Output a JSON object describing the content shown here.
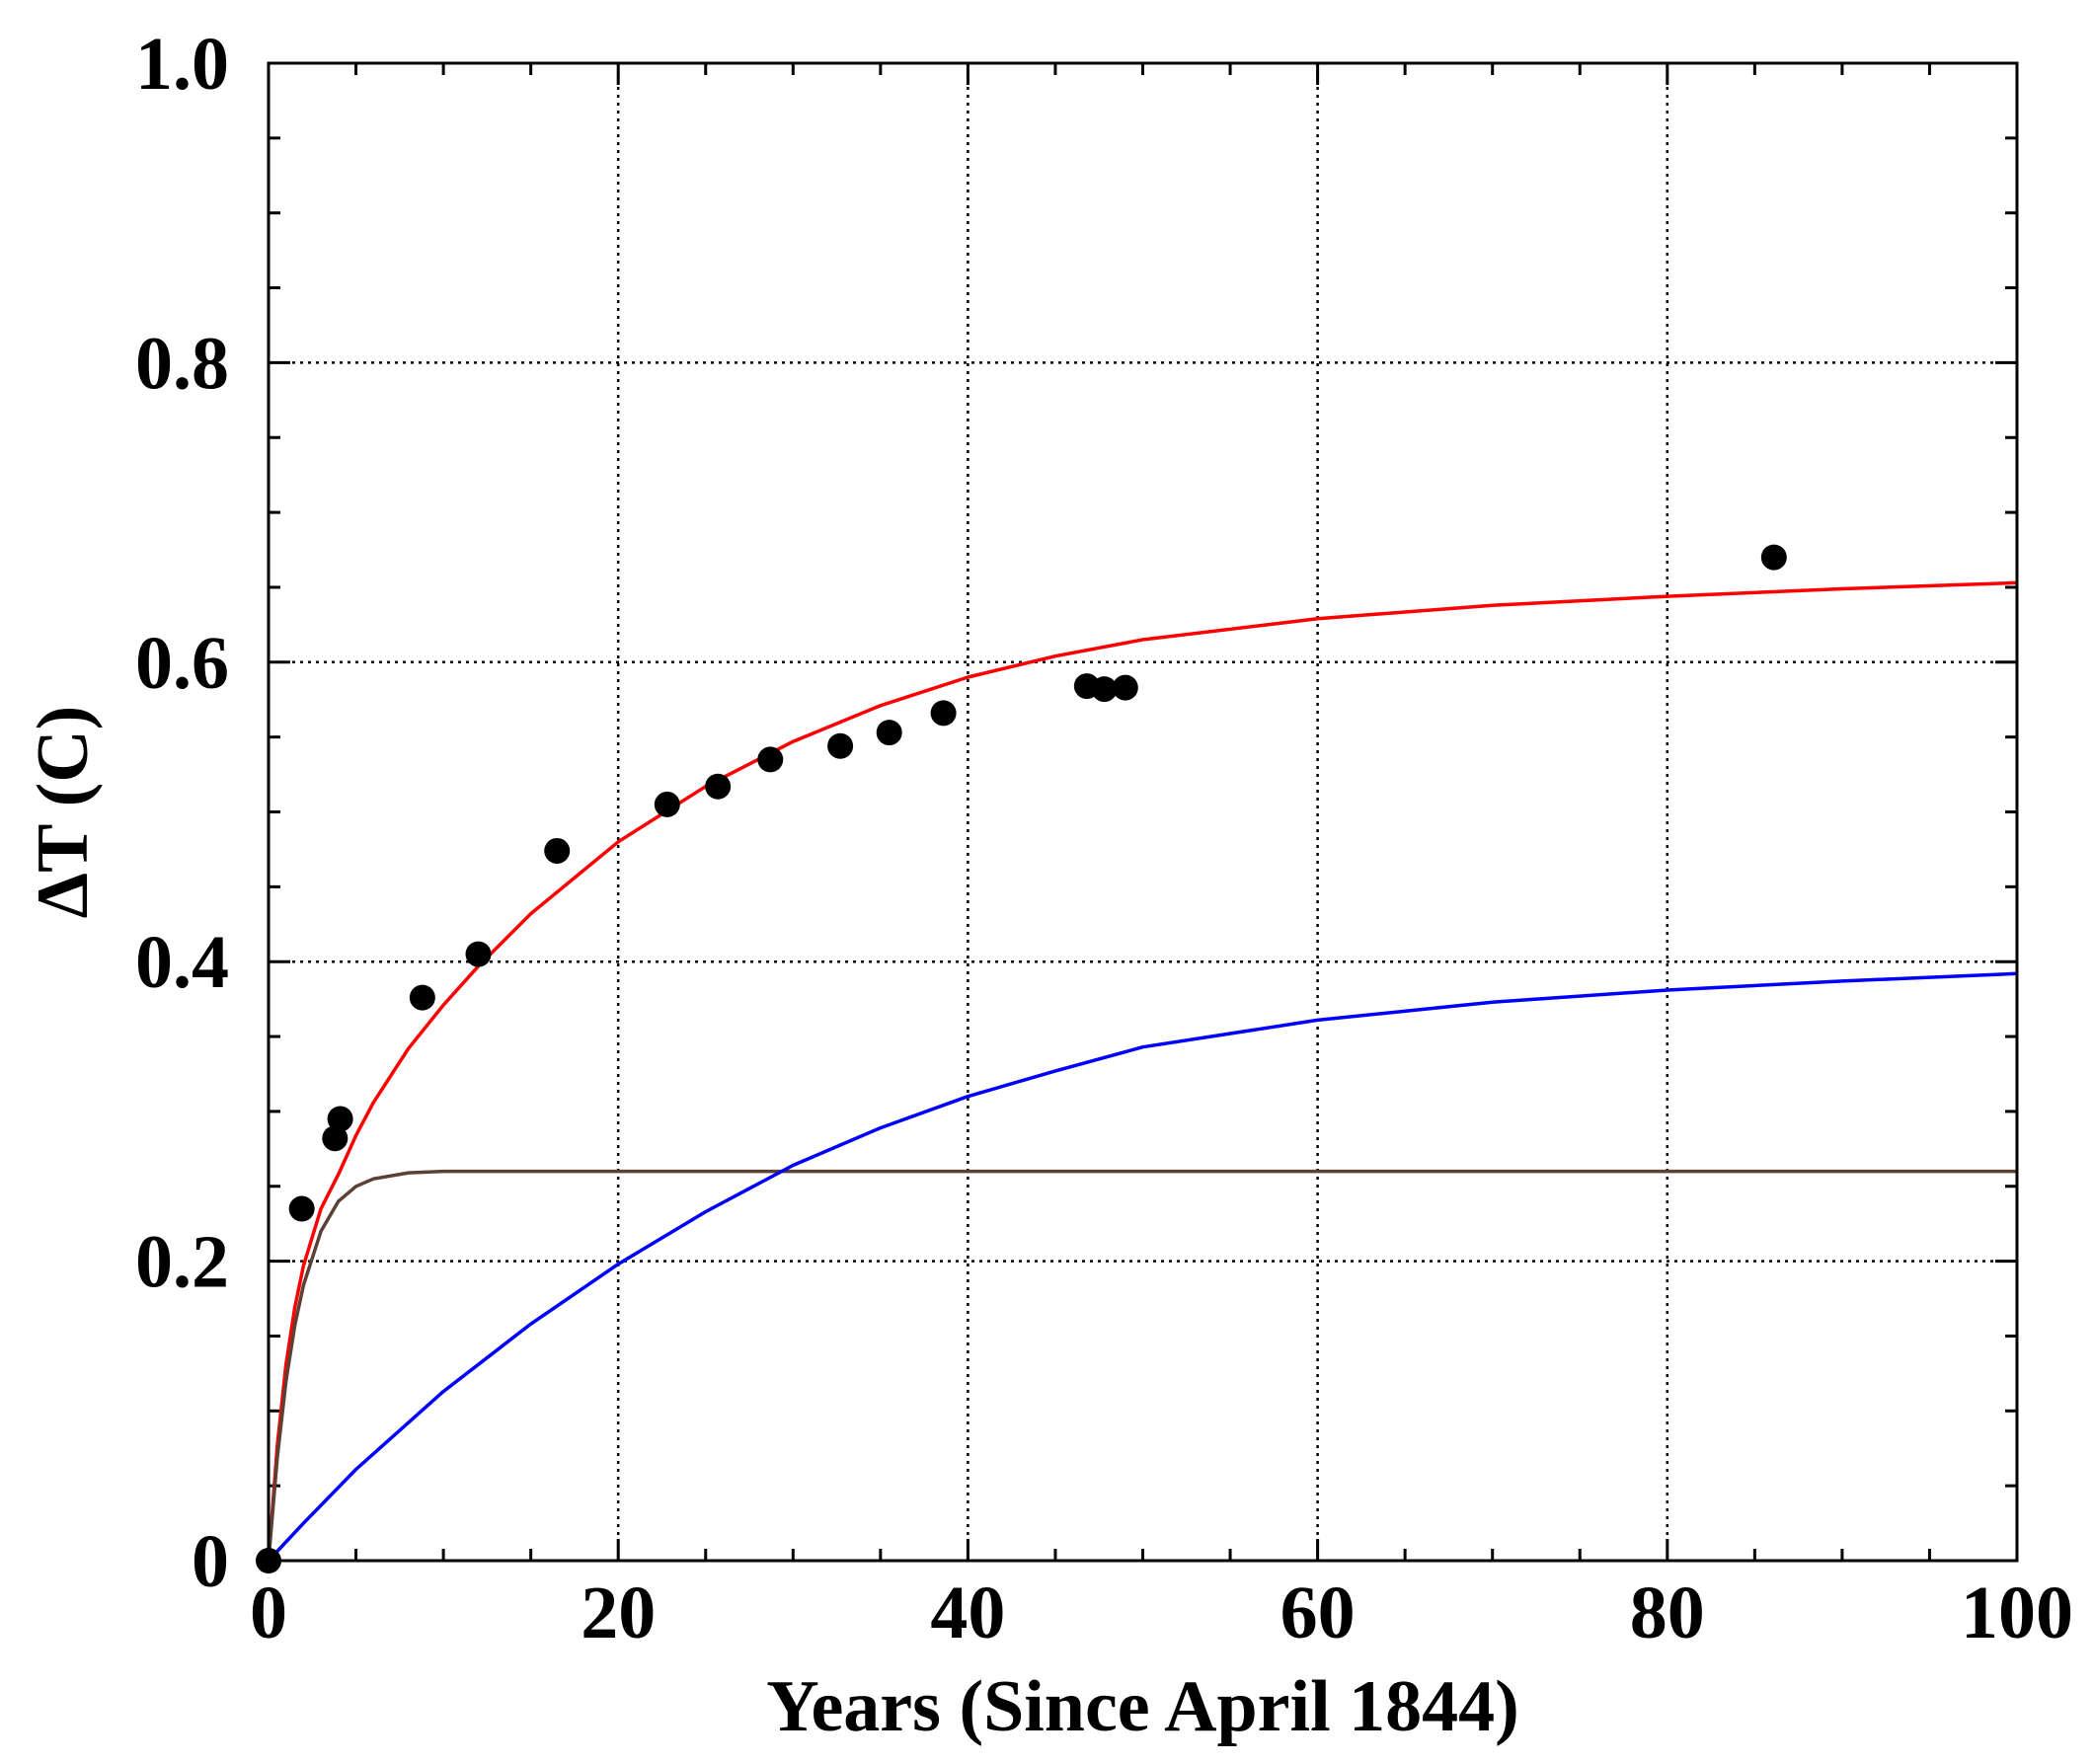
{
  "chart_data": {
    "type": "scatter",
    "title": "",
    "xlabel": "Years (Since April 1844)",
    "ylabel": "ΔT (C)",
    "xlim": [
      0,
      100
    ],
    "ylim": [
      0,
      1.0
    ],
    "x_ticks": [
      0,
      20,
      40,
      60,
      80,
      100
    ],
    "x_tick_labels": [
      "0",
      "20",
      "40",
      "60",
      "80",
      "100"
    ],
    "y_ticks": [
      0,
      0.2,
      0.4,
      0.6,
      0.8,
      1.0
    ],
    "y_tick_labels": [
      "0",
      "0.2",
      "0.4",
      "0.6",
      "0.8",
      "1.0"
    ],
    "grid": true,
    "points": {
      "color": "#000000",
      "x": [
        0,
        1.9,
        3.8,
        4.1,
        8.8,
        12.0,
        16.5,
        22.8,
        25.7,
        28.7,
        32.7,
        35.5,
        38.6,
        46.8,
        47.8,
        49.0,
        86.1
      ],
      "y": [
        0,
        0.235,
        0.282,
        0.295,
        0.376,
        0.405,
        0.474,
        0.505,
        0.517,
        0.535,
        0.544,
        0.553,
        0.566,
        0.584,
        0.582,
        0.583,
        0.67
      ]
    },
    "series": [
      {
        "color": "#ff0000",
        "x": [
          0,
          0.5,
          1,
          1.5,
          2,
          3,
          4,
          5,
          6,
          8,
          10,
          12,
          15,
          20,
          25,
          30,
          35,
          40,
          45,
          50,
          60,
          70,
          80,
          90,
          100
        ],
        "y": [
          0,
          0.077,
          0.131,
          0.169,
          0.197,
          0.235,
          0.258,
          0.284,
          0.306,
          0.342,
          0.371,
          0.397,
          0.432,
          0.48,
          0.517,
          0.547,
          0.571,
          0.59,
          0.604,
          0.615,
          0.629,
          0.638,
          0.644,
          0.649,
          0.653
        ]
      },
      {
        "color": "#5c4033",
        "x": [
          0,
          0.5,
          1,
          1.5,
          2,
          3,
          4,
          5,
          6,
          8,
          10,
          15,
          20,
          40,
          60,
          80,
          100
        ],
        "y": [
          0,
          0.069,
          0.12,
          0.157,
          0.184,
          0.22,
          0.24,
          0.25,
          0.255,
          0.259,
          0.26,
          0.26,
          0.26,
          0.26,
          0.26,
          0.26,
          0.26
        ]
      },
      {
        "color": "#0000ff",
        "x": [
          0,
          2,
          5,
          10,
          15,
          20,
          25,
          30,
          35,
          40,
          45,
          50,
          60,
          70,
          80,
          90,
          100
        ],
        "y": [
          0,
          0.025,
          0.061,
          0.113,
          0.158,
          0.198,
          0.233,
          0.264,
          0.289,
          0.31,
          0.327,
          0.343,
          0.361,
          0.373,
          0.381,
          0.387,
          0.392
        ]
      }
    ]
  }
}
